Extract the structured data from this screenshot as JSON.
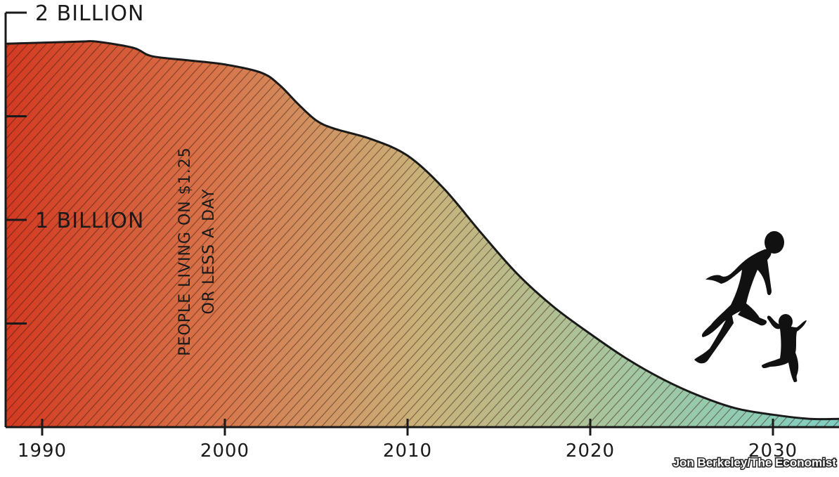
{
  "chart_data": {
    "type": "area",
    "title": "",
    "xlabel": "",
    "ylabel": "",
    "annotation": [
      "PEOPLE LIVING ON $1.25",
      "OR LESS A DAY"
    ],
    "x": [
      1990,
      1992,
      1993,
      1995,
      1996,
      1998,
      2000,
      2002,
      2003,
      2004,
      2005,
      2006,
      2008,
      2010,
      2012,
      2014,
      2016,
      2018,
      2020,
      2022,
      2024,
      2026,
      2028,
      2030,
      2032,
      2034
    ],
    "series": [
      {
        "values": [
          1.85,
          1.86,
          1.86,
          1.83,
          1.79,
          1.77,
          1.75,
          1.71,
          1.65,
          1.56,
          1.48,
          1.44,
          1.39,
          1.31,
          1.15,
          0.94,
          0.74,
          0.58,
          0.45,
          0.33,
          0.23,
          0.15,
          0.09,
          0.06,
          0.04,
          0.04
        ]
      }
    ],
    "xlim": [
      1990,
      2034
    ],
    "ylim": [
      0,
      2
    ],
    "x_ticks": [
      "1990",
      "2000",
      "2010",
      "2020",
      "2030"
    ],
    "y_tick_labels": [
      {
        "value": 2.0,
        "label": "2 BILLION"
      },
      {
        "value": 1.0,
        "label": "1 BILLION"
      }
    ],
    "y_ticks_unlabeled": [
      0.5,
      1.5
    ],
    "gradient_colors": [
      "#d33a22",
      "#d8744a",
      "#c8b27a",
      "#a3c7a2",
      "#7fcfc1"
    ],
    "silhouettes": [
      "running-man",
      "running-child"
    ],
    "grid": false,
    "legend": "none"
  },
  "credit": "Jon Berkeley/The Economist"
}
